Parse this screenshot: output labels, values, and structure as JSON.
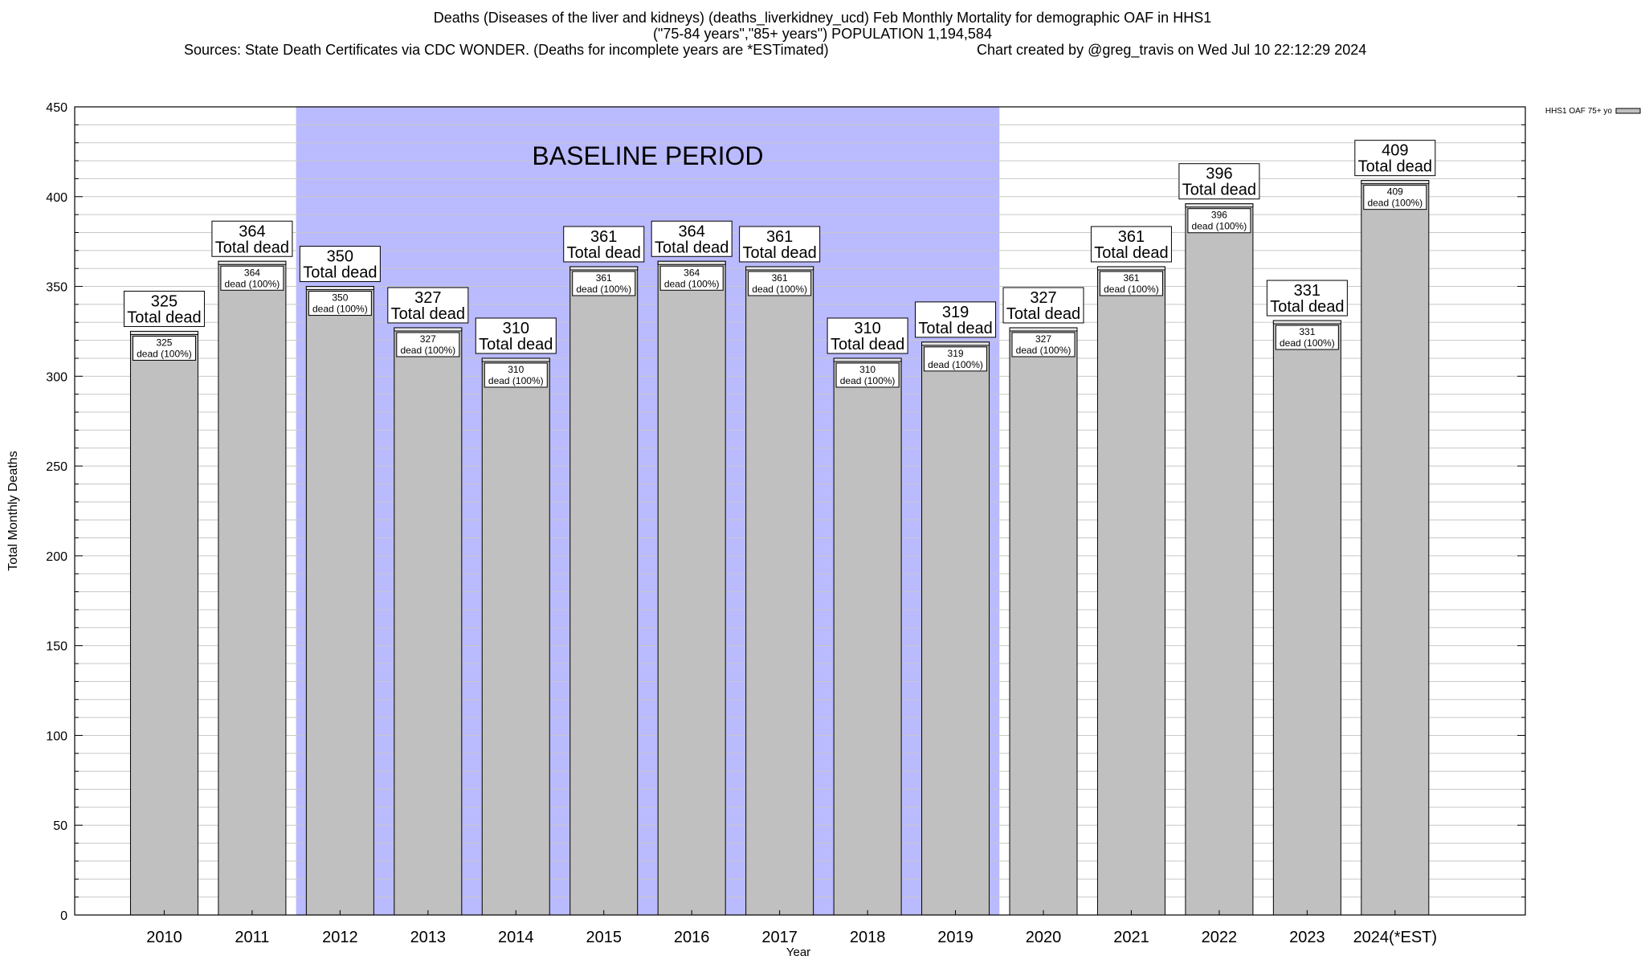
{
  "title": {
    "line1": "Deaths (Diseases of the liver and kidneys) (deaths_liverkidney_ucd) Feb Monthly Mortality for demographic OAF in HHS1",
    "line2": "(\"75-84 years\",\"85+ years\") POPULATION 1,194,584",
    "sources": "Sources: State Death Certificates via CDC WONDER. (Deaths for incomplete years are *ESTimated)",
    "credit": "Chart created by @greg_travis on Wed Jul 10 22:12:29 2024"
  },
  "chart_data": {
    "type": "bar",
    "xlabel": "Year",
    "ylabel": "Total Monthly Deaths",
    "ylim": [
      0,
      450
    ],
    "yticks": [
      0,
      50,
      100,
      150,
      200,
      250,
      300,
      350,
      400,
      450
    ],
    "minor_tick_step": 10,
    "grid": "horizontal",
    "categories": [
      "2010",
      "2011",
      "2012",
      "2013",
      "2014",
      "2015",
      "2016",
      "2017",
      "2018",
      "2019",
      "2020",
      "2021",
      "2022",
      "2023",
      "2024(*EST)"
    ],
    "series": [
      {
        "name": "HHS1 OAF 75+ yo",
        "values": [
          325,
          364,
          350,
          327,
          310,
          361,
          364,
          361,
          310,
          319,
          327,
          361,
          396,
          331,
          409
        ]
      }
    ],
    "total_label_suffix": "Total dead",
    "inner_label_suffix": "dead (100%)",
    "baseline": {
      "label": "BASELINE PERIOD",
      "from": "2012",
      "to": "2019"
    },
    "legend_position": "top-right"
  },
  "colors": {
    "bar_fill": "#c0c0c0",
    "baseline_fill": "#babaff",
    "gridline": "#c8c8c8",
    "axis": "#000000",
    "label_box": "#ffffff"
  }
}
